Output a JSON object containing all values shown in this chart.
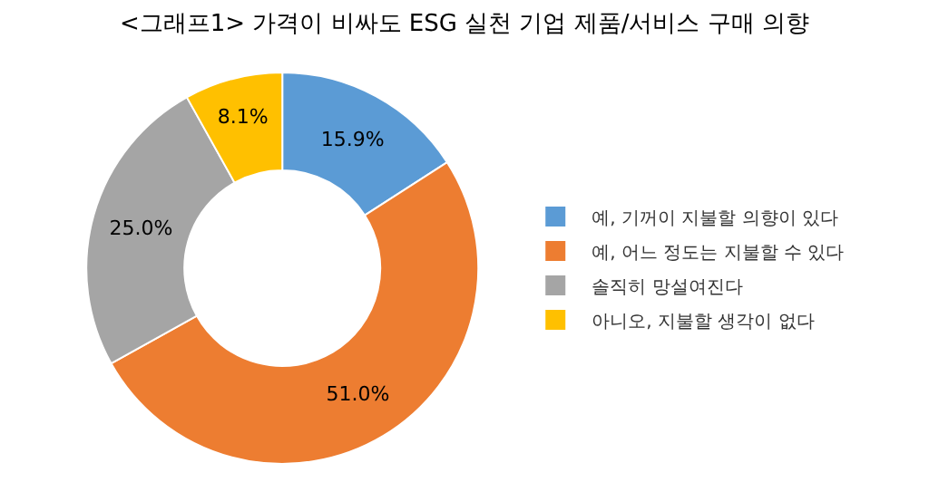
{
  "chart_data": {
    "type": "donut",
    "title": "<그래프1> 가격이 비싸도 ESG 실천 기업 제품/서비스 구매 의향",
    "categories": [
      "예, 기꺼이 지불할 의향이 있다",
      "예, 어느 정도는 지불할 수 있다",
      "솔직히 망설여진다",
      "아니오, 지불할 생각이 없다"
    ],
    "values": [
      15.9,
      51.0,
      25.0,
      8.1
    ],
    "value_labels": [
      "15.9%",
      "51.0%",
      "25.0%",
      "8.1%"
    ],
    "colors": [
      "#5b9bd5",
      "#ed7d31",
      "#a5a5a5",
      "#ffc000"
    ],
    "legend": "right"
  }
}
